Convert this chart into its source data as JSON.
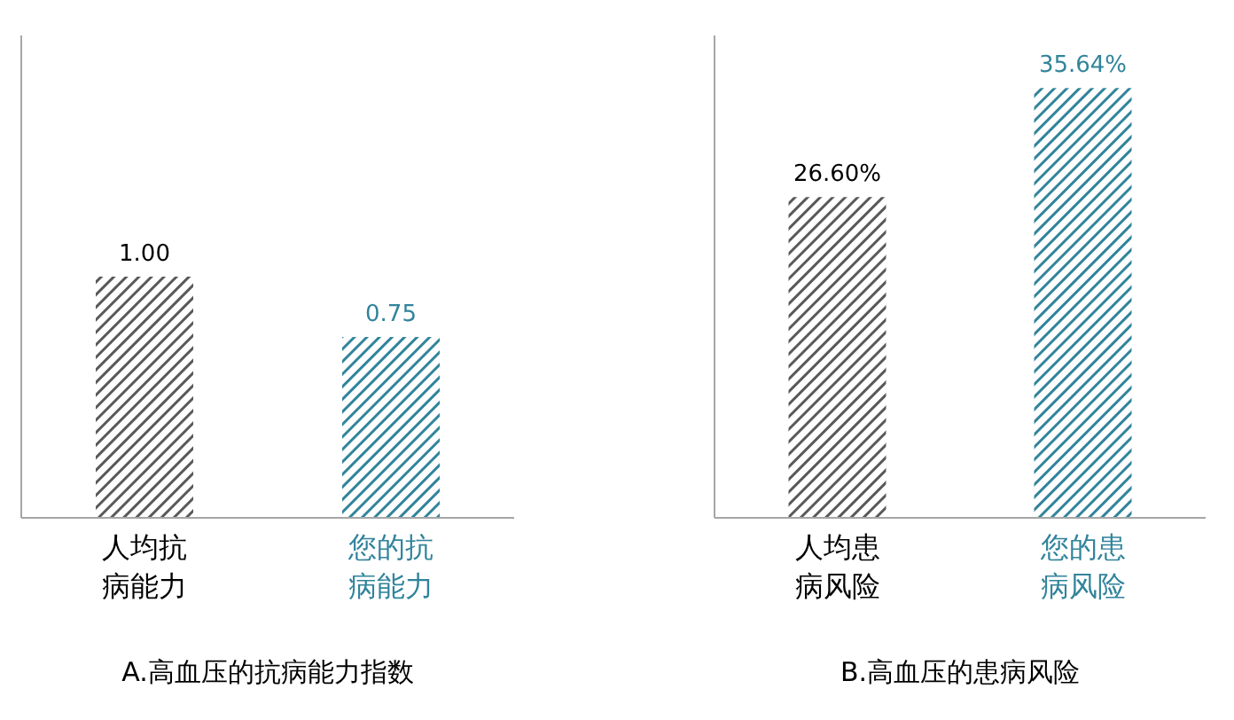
{
  "chart_data": [
    {
      "type": "bar",
      "title": "A.高血压的抗病能力指数",
      "categories": [
        "人均抗病能力",
        "您的抗病能力"
      ],
      "values": [
        1.0,
        0.75
      ],
      "colors": [
        "#595959",
        "#31849b"
      ],
      "value_labels": [
        "1.00",
        "0.75"
      ],
      "ylim": [
        0,
        2.0
      ]
    },
    {
      "type": "bar",
      "title": "B.高血压的患病风险",
      "categories": [
        "人均患病风险",
        "您的患病风险"
      ],
      "values": [
        26.6,
        35.64
      ],
      "colors": [
        "#595959",
        "#31849b"
      ],
      "value_labels": [
        "26.60%",
        "35.64%"
      ],
      "ylim": [
        0,
        40
      ]
    }
  ]
}
